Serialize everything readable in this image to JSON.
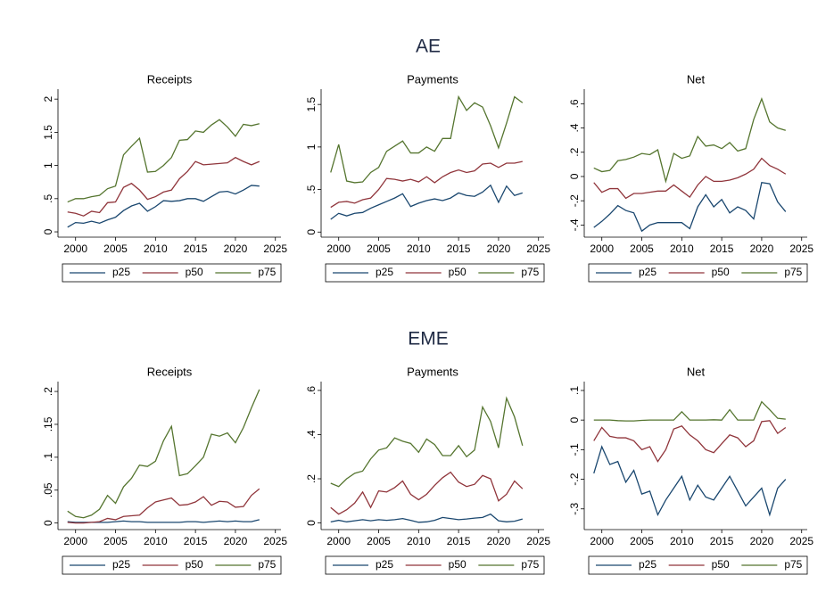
{
  "section_titles": [
    "AE",
    "EME"
  ],
  "chart_data": [
    {
      "type": "line",
      "title": "Receipts",
      "x": [
        1999,
        2000,
        2001,
        2002,
        2003,
        2004,
        2005,
        2006,
        2007,
        2008,
        2009,
        2010,
        2011,
        2012,
        2013,
        2014,
        2015,
        2016,
        2017,
        2018,
        2019,
        2020,
        2021,
        2022,
        2023
      ],
      "xlim": [
        1997.8,
        2025.7
      ],
      "xticks": [
        2000,
        2005,
        2010,
        2015,
        2020,
        2025
      ],
      "ylim": [
        -0.08,
        2.15
      ],
      "yticks": [
        0,
        {
          "value": 0.5,
          "label": ".5"
        },
        1,
        1.5,
        2
      ],
      "legend": "bottom",
      "series": [
        {
          "name": "p25",
          "color": "#1a476f",
          "values": [
            0.07,
            0.14,
            0.13,
            0.16,
            0.13,
            0.18,
            0.22,
            0.32,
            0.39,
            0.43,
            0.31,
            0.38,
            0.47,
            0.46,
            0.47,
            0.5,
            0.5,
            0.46,
            0.53,
            0.6,
            0.61,
            0.57,
            0.63,
            0.7,
            0.69
          ]
        },
        {
          "name": "p50",
          "color": "#90353b",
          "values": [
            0.3,
            0.28,
            0.24,
            0.31,
            0.29,
            0.44,
            0.45,
            0.67,
            0.73,
            0.63,
            0.49,
            0.53,
            0.6,
            0.63,
            0.8,
            0.91,
            1.06,
            1.01,
            1.02,
            1.03,
            1.04,
            1.12,
            1.06,
            1.01,
            1.06
          ]
        },
        {
          "name": "p75",
          "color": "#55752f",
          "values": [
            0.45,
            0.5,
            0.5,
            0.53,
            0.55,
            0.65,
            0.69,
            1.16,
            1.29,
            1.41,
            0.9,
            0.91,
            1.0,
            1.12,
            1.38,
            1.39,
            1.52,
            1.5,
            1.61,
            1.69,
            1.58,
            1.44,
            1.62,
            1.6,
            1.63
          ]
        }
      ]
    },
    {
      "type": "line",
      "title": "Payments",
      "x": [
        1999,
        2000,
        2001,
        2002,
        2003,
        2004,
        2005,
        2006,
        2007,
        2008,
        2009,
        2010,
        2011,
        2012,
        2013,
        2014,
        2015,
        2016,
        2017,
        2018,
        2019,
        2020,
        2021,
        2022,
        2023
      ],
      "xlim": [
        1997.8,
        2025.7
      ],
      "xticks": [
        2000,
        2005,
        2010,
        2015,
        2020,
        2025
      ],
      "ylim": [
        -0.06,
        1.68
      ],
      "yticks": [
        0,
        {
          "value": 0.5,
          "label": ".5"
        },
        1,
        1.5
      ],
      "legend": "bottom",
      "series": [
        {
          "name": "p25",
          "color": "#1a476f",
          "values": [
            0.15,
            0.22,
            0.19,
            0.22,
            0.23,
            0.28,
            0.32,
            0.36,
            0.4,
            0.45,
            0.3,
            0.34,
            0.37,
            0.39,
            0.37,
            0.4,
            0.46,
            0.43,
            0.42,
            0.47,
            0.55,
            0.35,
            0.54,
            0.43,
            0.46
          ]
        },
        {
          "name": "p50",
          "color": "#90353b",
          "values": [
            0.29,
            0.35,
            0.36,
            0.34,
            0.38,
            0.4,
            0.5,
            0.63,
            0.62,
            0.6,
            0.62,
            0.59,
            0.65,
            0.58,
            0.65,
            0.7,
            0.73,
            0.7,
            0.72,
            0.8,
            0.81,
            0.76,
            0.81,
            0.81,
            0.83
          ]
        },
        {
          "name": "p75",
          "color": "#55752f",
          "values": [
            0.7,
            1.03,
            0.6,
            0.58,
            0.59,
            0.7,
            0.76,
            0.95,
            1.01,
            1.07,
            0.93,
            0.93,
            1.0,
            0.95,
            1.1,
            1.1,
            1.59,
            1.43,
            1.52,
            1.47,
            1.25,
            0.99,
            1.28,
            1.59,
            1.52
          ]
        }
      ]
    },
    {
      "type": "line",
      "title": "Net",
      "x": [
        1999,
        2000,
        2001,
        2002,
        2003,
        2004,
        2005,
        2006,
        2007,
        2008,
        2009,
        2010,
        2011,
        2012,
        2013,
        2014,
        2015,
        2016,
        2017,
        2018,
        2019,
        2020,
        2021,
        2022,
        2023
      ],
      "xlim": [
        1997.8,
        2025.7
      ],
      "xticks": [
        2000,
        2005,
        2010,
        2015,
        2020,
        2025
      ],
      "ylim": [
        -0.5,
        0.72
      ],
      "yticks": [
        {
          "value": -0.4,
          "label": "-.4"
        },
        {
          "value": -0.2,
          "label": "-.2"
        },
        0,
        {
          "value": 0.2,
          "label": ".2"
        },
        {
          "value": 0.4,
          "label": ".4"
        },
        {
          "value": 0.6,
          "label": ".6"
        }
      ],
      "legend": "bottom",
      "series": [
        {
          "name": "p25",
          "color": "#1a476f",
          "values": [
            -0.42,
            -0.37,
            -0.31,
            -0.24,
            -0.28,
            -0.3,
            -0.45,
            -0.4,
            -0.38,
            -0.38,
            -0.38,
            -0.38,
            -0.43,
            -0.25,
            -0.15,
            -0.25,
            -0.19,
            -0.3,
            -0.25,
            -0.28,
            -0.35,
            -0.05,
            -0.06,
            -0.21,
            -0.29
          ]
        },
        {
          "name": "p50",
          "color": "#90353b",
          "values": [
            -0.05,
            -0.13,
            -0.1,
            -0.1,
            -0.18,
            -0.14,
            -0.14,
            -0.13,
            -0.12,
            -0.12,
            -0.07,
            -0.12,
            -0.17,
            -0.07,
            0.0,
            -0.04,
            -0.04,
            -0.03,
            -0.01,
            0.02,
            0.06,
            0.15,
            0.09,
            0.06,
            0.02
          ]
        },
        {
          "name": "p75",
          "color": "#55752f",
          "values": [
            0.07,
            0.04,
            0.05,
            0.13,
            0.14,
            0.16,
            0.19,
            0.18,
            0.22,
            -0.04,
            0.19,
            0.15,
            0.17,
            0.33,
            0.25,
            0.26,
            0.23,
            0.28,
            0.21,
            0.23,
            0.47,
            0.64,
            0.45,
            0.4,
            0.38
          ]
        }
      ]
    },
    {
      "type": "line",
      "title": "Receipts",
      "x": [
        1999,
        2000,
        2001,
        2002,
        2003,
        2004,
        2005,
        2006,
        2007,
        2008,
        2009,
        2010,
        2011,
        2012,
        2013,
        2014,
        2015,
        2016,
        2017,
        2018,
        2019,
        2020,
        2021,
        2022,
        2023
      ],
      "xlim": [
        1997.8,
        2025.7
      ],
      "xticks": [
        2000,
        2005,
        2010,
        2015,
        2020,
        2025
      ],
      "ylim": [
        -0.01,
        0.215
      ],
      "yticks": [
        0,
        {
          "value": 0.05,
          "label": ".05"
        },
        {
          "value": 0.1,
          "label": ".1"
        },
        {
          "value": 0.15,
          "label": ".15"
        },
        {
          "value": 0.2,
          "label": ".2"
        }
      ],
      "legend": "bottom",
      "series": [
        {
          "name": "p25",
          "color": "#1a476f",
          "values": [
            0.002,
            0.001,
            0.001,
            0.001,
            0.001,
            0.001,
            0.002,
            0.003,
            0.002,
            0.002,
            0.001,
            0.001,
            0.001,
            0.001,
            0.001,
            0.002,
            0.002,
            0.001,
            0.002,
            0.003,
            0.002,
            0.003,
            0.002,
            0.002,
            0.005
          ]
        },
        {
          "name": "p50",
          "color": "#90353b",
          "values": [
            0.001,
            0.0,
            0.0,
            0.001,
            0.002,
            0.007,
            0.005,
            0.01,
            0.011,
            0.012,
            0.023,
            0.032,
            0.035,
            0.038,
            0.027,
            0.028,
            0.032,
            0.04,
            0.027,
            0.033,
            0.032,
            0.024,
            0.025,
            0.042,
            0.052
          ]
        },
        {
          "name": "p75",
          "color": "#55752f",
          "values": [
            0.018,
            0.01,
            0.008,
            0.012,
            0.021,
            0.042,
            0.03,
            0.055,
            0.068,
            0.088,
            0.086,
            0.094,
            0.125,
            0.147,
            0.072,
            0.075,
            0.087,
            0.1,
            0.135,
            0.132,
            0.137,
            0.122,
            0.145,
            0.175,
            0.203
          ]
        }
      ]
    },
    {
      "type": "line",
      "title": "Payments",
      "x": [
        1999,
        2000,
        2001,
        2002,
        2003,
        2004,
        2005,
        2006,
        2007,
        2008,
        2009,
        2010,
        2011,
        2012,
        2013,
        2014,
        2015,
        2016,
        2017,
        2018,
        2019,
        2020,
        2021,
        2022,
        2023
      ],
      "xlim": [
        1997.8,
        2025.7
      ],
      "xticks": [
        2000,
        2005,
        2010,
        2015,
        2020,
        2025
      ],
      "ylim": [
        -0.03,
        0.64
      ],
      "yticks": [
        0,
        {
          "value": 0.2,
          "label": ".2"
        },
        {
          "value": 0.4,
          "label": ".4"
        },
        {
          "value": 0.6,
          "label": ".6"
        }
      ],
      "legend": "bottom",
      "series": [
        {
          "name": "p25",
          "color": "#1a476f",
          "values": [
            0.005,
            0.012,
            0.005,
            0.01,
            0.015,
            0.01,
            0.015,
            0.012,
            0.015,
            0.02,
            0.012,
            0.003,
            0.005,
            0.012,
            0.025,
            0.02,
            0.015,
            0.018,
            0.022,
            0.025,
            0.04,
            0.01,
            0.005,
            0.008,
            0.018
          ]
        },
        {
          "name": "p50",
          "color": "#90353b",
          "values": [
            0.07,
            0.04,
            0.06,
            0.09,
            0.14,
            0.07,
            0.145,
            0.14,
            0.16,
            0.19,
            0.13,
            0.105,
            0.13,
            0.17,
            0.205,
            0.23,
            0.185,
            0.165,
            0.175,
            0.215,
            0.2,
            0.1,
            0.13,
            0.19,
            0.155
          ]
        },
        {
          "name": "p75",
          "color": "#55752f",
          "values": [
            0.18,
            0.165,
            0.2,
            0.225,
            0.235,
            0.29,
            0.33,
            0.34,
            0.385,
            0.37,
            0.36,
            0.32,
            0.38,
            0.355,
            0.305,
            0.305,
            0.35,
            0.3,
            0.33,
            0.525,
            0.46,
            0.34,
            0.565,
            0.48,
            0.35
          ]
        }
      ]
    },
    {
      "type": "line",
      "title": "Net",
      "x": [
        1999,
        2000,
        2001,
        2002,
        2003,
        2004,
        2005,
        2006,
        2007,
        2008,
        2009,
        2010,
        2011,
        2012,
        2013,
        2014,
        2015,
        2016,
        2017,
        2018,
        2019,
        2020,
        2021,
        2022,
        2023
      ],
      "xlim": [
        1997.8,
        2025.7
      ],
      "xticks": [
        2000,
        2005,
        2010,
        2015,
        2020,
        2025
      ],
      "ylim": [
        -0.37,
        0.13
      ],
      "yticks": [
        {
          "value": -0.3,
          "label": "-.3"
        },
        {
          "value": -0.2,
          "label": "-.2"
        },
        {
          "value": -0.1,
          "label": "-.1"
        },
        0,
        {
          "value": 0.1,
          "label": ".1"
        }
      ],
      "legend": "bottom",
      "series": [
        {
          "name": "p25",
          "color": "#1a476f",
          "values": [
            -0.18,
            -0.09,
            -0.15,
            -0.14,
            -0.21,
            -0.17,
            -0.25,
            -0.24,
            -0.32,
            -0.27,
            -0.23,
            -0.19,
            -0.27,
            -0.22,
            -0.26,
            -0.27,
            -0.23,
            -0.19,
            -0.24,
            -0.29,
            -0.26,
            -0.23,
            -0.32,
            -0.23,
            -0.2
          ]
        },
        {
          "name": "p50",
          "color": "#90353b",
          "values": [
            -0.07,
            -0.025,
            -0.055,
            -0.06,
            -0.06,
            -0.07,
            -0.1,
            -0.09,
            -0.14,
            -0.1,
            -0.03,
            -0.02,
            -0.05,
            -0.07,
            -0.1,
            -0.11,
            -0.08,
            -0.05,
            -0.06,
            -0.09,
            -0.07,
            -0.005,
            -0.002,
            -0.045,
            -0.025
          ]
        },
        {
          "name": "p75",
          "color": "#55752f",
          "values": [
            0,
            0,
            0,
            -0.002,
            -0.003,
            -0.003,
            -0.001,
            0,
            0,
            0,
            0,
            0.028,
            0,
            0,
            0,
            0.001,
            0,
            0.035,
            0,
            0,
            0,
            0.062,
            0.035,
            0.006,
            0.003
          ]
        }
      ]
    }
  ]
}
